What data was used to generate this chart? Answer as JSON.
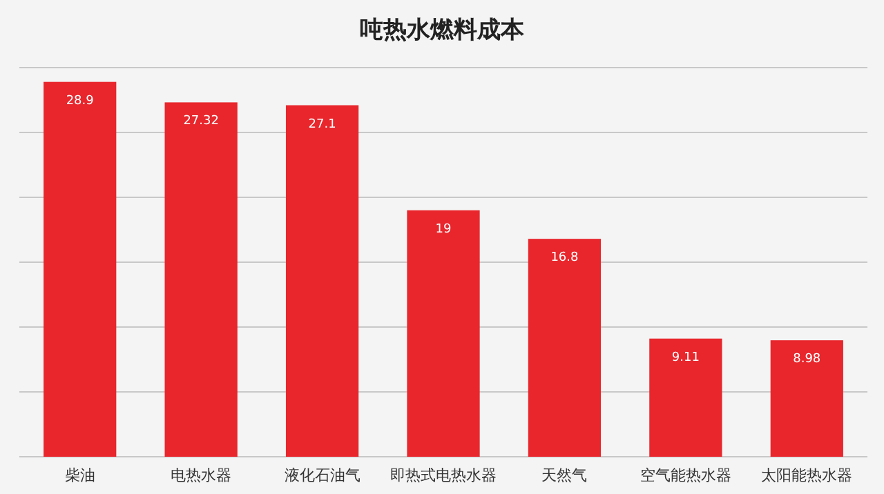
{
  "chart_data": {
    "type": "bar",
    "title": "吨热水燃料成本",
    "categories": [
      "柴油",
      "电热水器",
      "液化石油气",
      "即热式电热水器",
      "天然气",
      "空气能热水器",
      "太阳能热水器"
    ],
    "values": [
      28.9,
      27.32,
      27.1,
      19,
      16.8,
      9.11,
      8.98
    ],
    "color": "#e8262c",
    "ylim": [
      0,
      30
    ],
    "yticks": [
      {
        "value": 0,
        "label": null
      },
      {
        "value": 5,
        "label": null
      },
      {
        "value": 10,
        "label": null
      },
      {
        "value": 15,
        "label": null
      },
      {
        "value": 20,
        "label": null
      },
      {
        "value": 25,
        "label": null
      },
      {
        "value": 30,
        "label": null
      }
    ],
    "grid": "y",
    "tick_labels": "x",
    "data_labels": true
  }
}
